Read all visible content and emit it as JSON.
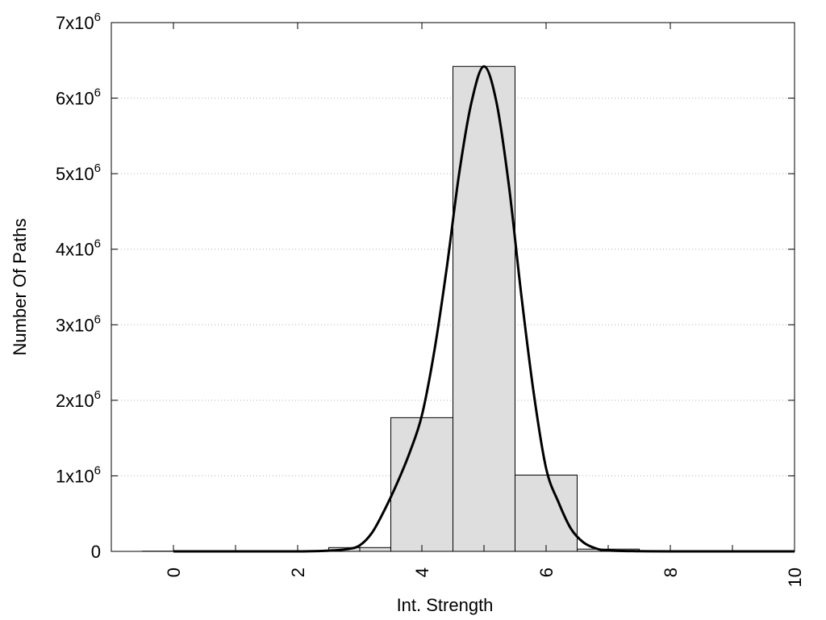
{
  "chart_data": {
    "type": "bar",
    "title": "",
    "xlabel": "Int. Strength",
    "ylabel": "Number Of Paths",
    "xlim": [
      -1,
      10
    ],
    "ylim": [
      0,
      7000000
    ],
    "x_ticks": [
      "0",
      "2",
      "4",
      "6",
      "8",
      "10"
    ],
    "x_tick_values": [
      0,
      2,
      4,
      6,
      8,
      10
    ],
    "y_ticks": [
      {
        "mantissa": "0",
        "exp": ""
      },
      {
        "mantissa": "1x10",
        "exp": "6"
      },
      {
        "mantissa": "2x10",
        "exp": "6"
      },
      {
        "mantissa": "3x10",
        "exp": "6"
      },
      {
        "mantissa": "4x10",
        "exp": "6"
      },
      {
        "mantissa": "5x10",
        "exp": "6"
      },
      {
        "mantissa": "6x10",
        "exp": "6"
      },
      {
        "mantissa": "7x10",
        "exp": "6"
      }
    ],
    "y_tick_values": [
      0,
      1000000,
      2000000,
      3000000,
      4000000,
      5000000,
      6000000,
      7000000
    ],
    "grid": "horizontal-dotted",
    "bar_width": 1,
    "bars": [
      {
        "x": 0,
        "value": 3000
      },
      {
        "x": 1,
        "value": 3000
      },
      {
        "x": 2,
        "value": 5000
      },
      {
        "x": 3,
        "value": 50000
      },
      {
        "x": 4,
        "value": 1770000
      },
      {
        "x": 5,
        "value": 6420000
      },
      {
        "x": 6,
        "value": 1010000
      },
      {
        "x": 7,
        "value": 30000
      },
      {
        "x": 8,
        "value": 5000
      },
      {
        "x": 9,
        "value": 3000
      }
    ],
    "bar_color": "#dedede",
    "curve": {
      "color": "#000000",
      "points": [
        [
          0,
          0
        ],
        [
          1,
          0
        ],
        [
          2,
          0
        ],
        [
          2.5,
          10000
        ],
        [
          2.8,
          30000
        ],
        [
          3.0,
          80000
        ],
        [
          3.2,
          250000
        ],
        [
          3.4,
          550000
        ],
        [
          3.6,
          900000
        ],
        [
          3.8,
          1300000
        ],
        [
          4.0,
          1800000
        ],
        [
          4.2,
          2650000
        ],
        [
          4.4,
          3750000
        ],
        [
          4.6,
          5000000
        ],
        [
          4.8,
          5950000
        ],
        [
          5.0,
          6420000
        ],
        [
          5.2,
          5950000
        ],
        [
          5.4,
          4850000
        ],
        [
          5.6,
          3400000
        ],
        [
          5.8,
          2100000
        ],
        [
          6.0,
          1100000
        ],
        [
          6.2,
          650000
        ],
        [
          6.4,
          300000
        ],
        [
          6.6,
          120000
        ],
        [
          6.8,
          40000
        ],
        [
          7.0,
          12000
        ],
        [
          7.5,
          3000
        ],
        [
          8,
          0
        ],
        [
          9,
          0
        ],
        [
          10,
          0
        ]
      ]
    }
  }
}
